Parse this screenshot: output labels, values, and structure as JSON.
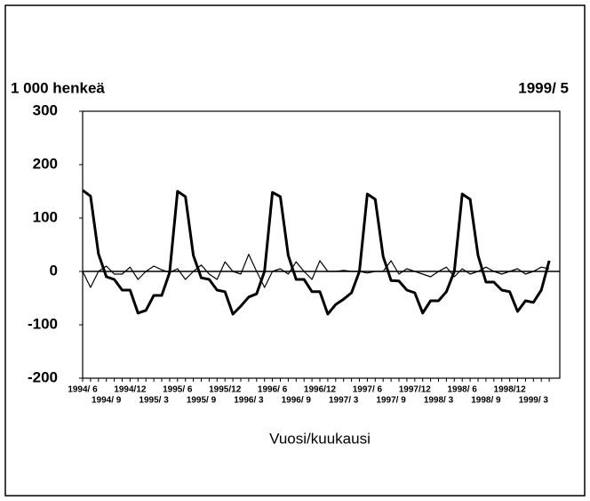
{
  "chart_data": {
    "type": "line",
    "y_axis_label": "1 000 henkeä",
    "annotation": "1999/ 5",
    "x_axis_label": "Vuosi/kuukausi",
    "categories": [
      "1994/ 6",
      null,
      null,
      "1994/ 9",
      null,
      null,
      "1994/12",
      null,
      null,
      "1995/ 3",
      null,
      null,
      "1995/ 6",
      null,
      null,
      "1995/ 9",
      null,
      null,
      "1995/12",
      null,
      null,
      "1996/ 3",
      null,
      null,
      "1996/ 6",
      null,
      null,
      "1996/ 9",
      null,
      null,
      "1996/12",
      null,
      null,
      "1997/ 3",
      null,
      null,
      "1997/ 6",
      null,
      null,
      "1997/ 9",
      null,
      null,
      "1997/12",
      null,
      null,
      "1998/ 3",
      null,
      null,
      "1998/ 6",
      null,
      null,
      "1998/ 9",
      null,
      null,
      "1998/12",
      null,
      null,
      "1999/ 3",
      null,
      null
    ],
    "series": [
      {
        "color": "#000000",
        "width": 3,
        "values": [
          152,
          141,
          33,
          -10,
          -15,
          -35,
          -35,
          -78,
          -73,
          -45,
          -45,
          -2,
          150,
          140,
          30,
          -12,
          -15,
          -35,
          -38,
          -80,
          -65,
          -48,
          -42,
          0,
          148,
          140,
          30,
          -15,
          -15,
          -38,
          -38,
          -80,
          -62,
          -52,
          -40,
          0,
          145,
          135,
          28,
          -17,
          -18,
          -35,
          -40,
          -78,
          -55,
          -55,
          -38,
          0,
          145,
          135,
          30,
          -20,
          -20,
          -35,
          -38,
          -75,
          -55,
          -58,
          -35,
          20
        ]
      },
      {
        "color": "#000000",
        "width": 1.2,
        "values": [
          0,
          -30,
          0,
          10,
          -5,
          -5,
          8,
          -15,
          0,
          10,
          3,
          -2,
          5,
          -15,
          0,
          12,
          -5,
          -15,
          18,
          0,
          -5,
          32,
          0,
          -30,
          0,
          5,
          -5,
          18,
          0,
          -15,
          20,
          0,
          0,
          2,
          0,
          0,
          -3,
          0,
          0,
          20,
          -5,
          5,
          0,
          -5,
          -10,
          0,
          8,
          -10,
          5,
          -5,
          0,
          8,
          0,
          -5,
          0,
          5,
          -5,
          0,
          8,
          5
        ]
      }
    ],
    "ylim": [
      -200,
      300
    ],
    "yticks": [
      -200,
      -100,
      0,
      100,
      200,
      300
    ],
    "grid": false
  }
}
